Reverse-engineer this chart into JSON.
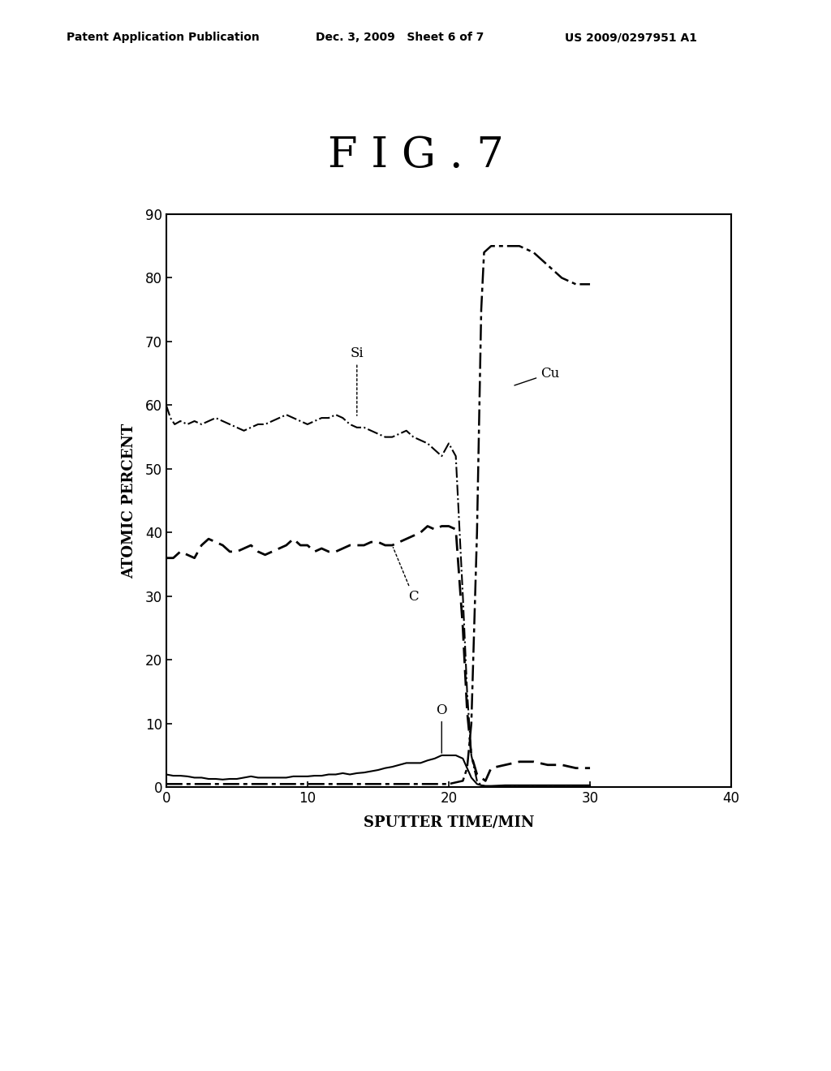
{
  "title": "F I G . 7",
  "xlabel": "SPUTTER TIME/MIN",
  "ylabel": "ATOMIC PERCENT",
  "xlim": [
    0,
    40
  ],
  "ylim": [
    0,
    90
  ],
  "xticks": [
    0,
    10,
    20,
    30,
    40
  ],
  "yticks": [
    0,
    10,
    20,
    30,
    40,
    50,
    60,
    70,
    80,
    90
  ],
  "header_left": "Patent Application Publication",
  "header_center": "Dec. 3, 2009   Sheet 6 of 7",
  "header_right": "US 2009/0297951 A1",
  "background_color": "#ffffff",
  "line_color": "#000000",
  "Si": {
    "x": [
      0,
      0.3,
      0.6,
      1,
      1.5,
      2,
      2.5,
      3,
      3.5,
      4,
      4.5,
      5,
      5.5,
      6,
      6.5,
      7,
      7.5,
      8,
      8.5,
      9,
      9.5,
      10,
      10.5,
      11,
      11.5,
      12,
      12.5,
      13,
      13.5,
      14,
      14.5,
      15,
      15.5,
      16,
      16.5,
      17,
      17.5,
      18,
      18.5,
      19,
      19.5,
      20,
      20.5,
      21,
      21.3,
      21.6,
      22,
      22.3,
      22.6,
      23,
      24,
      25,
      26,
      27,
      28,
      29,
      30
    ],
    "y": [
      60,
      58,
      57,
      57.5,
      57,
      57.5,
      57,
      57.5,
      58,
      57.5,
      57,
      56.5,
      56,
      56.5,
      57,
      57,
      57.5,
      58,
      58.5,
      58,
      57.5,
      57,
      57.5,
      58,
      58,
      58.5,
      58,
      57,
      56.5,
      56.5,
      56,
      55.5,
      55,
      55,
      55.5,
      56,
      55,
      54.5,
      54,
      53,
      52,
      54,
      52,
      30,
      15,
      5,
      1,
      0.3,
      0.1,
      0.1,
      0.1,
      0.1,
      0.1,
      0.1,
      0.1,
      0.1,
      0.1
    ],
    "linewidth": 1.5
  },
  "C": {
    "x": [
      0,
      0.5,
      1,
      1.5,
      2,
      2.5,
      3,
      3.5,
      4,
      4.5,
      5,
      5.5,
      6,
      6.5,
      7,
      7.5,
      8,
      8.5,
      9,
      9.5,
      10,
      10.5,
      11,
      11.5,
      12,
      12.5,
      13,
      13.5,
      14,
      14.5,
      15,
      15.5,
      16,
      16.5,
      17,
      17.5,
      18,
      18.5,
      19,
      19.5,
      20,
      20.5,
      21,
      21.3,
      21.6,
      22,
      22.3,
      22.6,
      23,
      24,
      25,
      26,
      27,
      28,
      29,
      30
    ],
    "y": [
      36,
      36,
      37,
      36.5,
      36,
      38,
      39,
      38.5,
      38,
      37,
      37,
      37.5,
      38,
      37,
      36.5,
      37,
      37.5,
      38,
      39,
      38,
      38,
      37,
      37.5,
      37,
      37,
      37.5,
      38,
      38,
      38,
      38.5,
      38.5,
      38,
      38,
      38.5,
      39,
      39.5,
      40,
      41,
      40.5,
      41,
      41,
      40.5,
      25,
      12,
      5,
      2,
      1.5,
      1,
      3,
      3.5,
      4,
      4,
      3.5,
      3.5,
      3,
      3
    ],
    "linewidth": 2.0
  },
  "Cu": {
    "x": [
      0,
      1,
      2,
      3,
      4,
      5,
      6,
      7,
      8,
      9,
      10,
      11,
      12,
      13,
      14,
      15,
      16,
      17,
      18,
      19,
      20,
      21,
      21.3,
      21.6,
      22,
      22.3,
      22.5,
      23,
      23.5,
      24,
      25,
      26,
      27,
      28,
      29,
      30
    ],
    "y": [
      0.5,
      0.5,
      0.5,
      0.5,
      0.5,
      0.5,
      0.5,
      0.5,
      0.5,
      0.5,
      0.5,
      0.5,
      0.5,
      0.5,
      0.5,
      0.5,
      0.5,
      0.5,
      0.5,
      0.5,
      0.5,
      1,
      3,
      10,
      40,
      75,
      84,
      85,
      85,
      85,
      85,
      84,
      82,
      80,
      79,
      79
    ],
    "linewidth": 1.8
  },
  "O": {
    "x": [
      0,
      0.5,
      1,
      1.5,
      2,
      2.5,
      3,
      3.5,
      4,
      4.5,
      5,
      5.5,
      6,
      6.5,
      7,
      7.5,
      8,
      8.5,
      9,
      9.5,
      10,
      10.5,
      11,
      11.5,
      12,
      12.5,
      13,
      13.5,
      14,
      14.5,
      15,
      15.5,
      16,
      16.5,
      17,
      17.5,
      18,
      18.5,
      19,
      19.5,
      20,
      20.5,
      21,
      21.3,
      21.6,
      22,
      22.3,
      22.6,
      23,
      24,
      25,
      26,
      27,
      28,
      29,
      30
    ],
    "y": [
      2,
      1.8,
      1.8,
      1.7,
      1.5,
      1.5,
      1.3,
      1.3,
      1.2,
      1.3,
      1.3,
      1.5,
      1.7,
      1.5,
      1.5,
      1.5,
      1.5,
      1.5,
      1.7,
      1.7,
      1.7,
      1.8,
      1.8,
      2,
      2,
      2.2,
      2,
      2.2,
      2.3,
      2.5,
      2.7,
      3.0,
      3.2,
      3.5,
      3.8,
      3.8,
      3.8,
      4.2,
      4.5,
      5,
      5,
      5,
      4.5,
      3,
      1.5,
      0.5,
      0.3,
      0.2,
      0.2,
      0.3,
      0.3,
      0.3,
      0.3,
      0.3,
      0.3,
      0.3
    ],
    "linewidth": 1.5
  }
}
